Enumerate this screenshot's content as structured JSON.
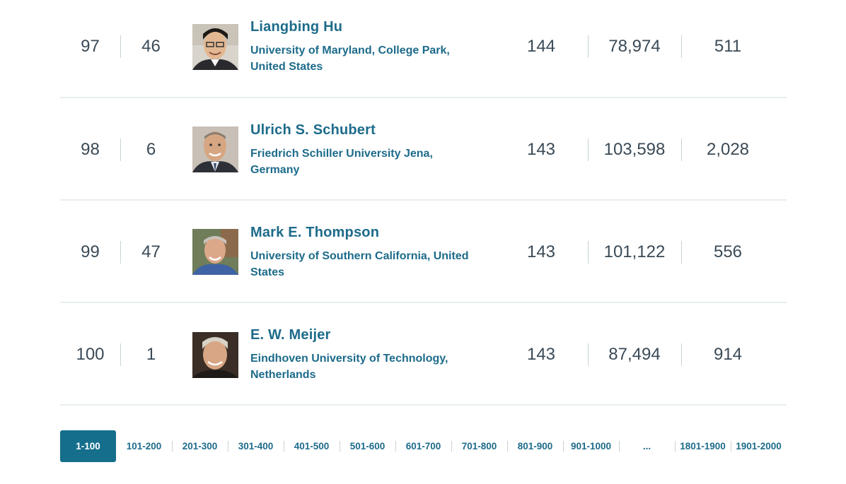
{
  "rows": [
    {
      "rank": "97",
      "discipline_rank": "46",
      "name": "Liangbing Hu",
      "affiliation": "University of Maryland, College Park, United States",
      "h_index": "144",
      "citations": "78,974",
      "publications": "511",
      "photo": "portrait-icon"
    },
    {
      "rank": "98",
      "discipline_rank": "6",
      "name": "Ulrich S. Schubert",
      "affiliation": "Friedrich Schiller University Jena, Germany",
      "h_index": "143",
      "citations": "103,598",
      "publications": "2,028",
      "photo": "portrait-icon"
    },
    {
      "rank": "99",
      "discipline_rank": "47",
      "name": "Mark E. Thompson",
      "affiliation": "University of Southern California, United States",
      "h_index": "143",
      "citations": "101,122",
      "publications": "556",
      "photo": "portrait-icon"
    },
    {
      "rank": "100",
      "discipline_rank": "1",
      "name": "E. W. Meijer",
      "affiliation": "Eindhoven University of Technology, Netherlands",
      "h_index": "143",
      "citations": "87,494",
      "publications": "914",
      "photo": "portrait-icon"
    }
  ],
  "pagination": {
    "pages": [
      "1-100",
      "101-200",
      "201-300",
      "301-400",
      "401-500",
      "501-600",
      "601-700",
      "701-800",
      "801-900",
      "901-1000",
      "...",
      "1801-1900",
      "1901-2000"
    ],
    "active": "1-100"
  },
  "colors": {
    "link": "#1d6b8a",
    "active_page_bg": "#156f8c",
    "number_text": "#3a4a56",
    "divider": "#e8eef0"
  }
}
